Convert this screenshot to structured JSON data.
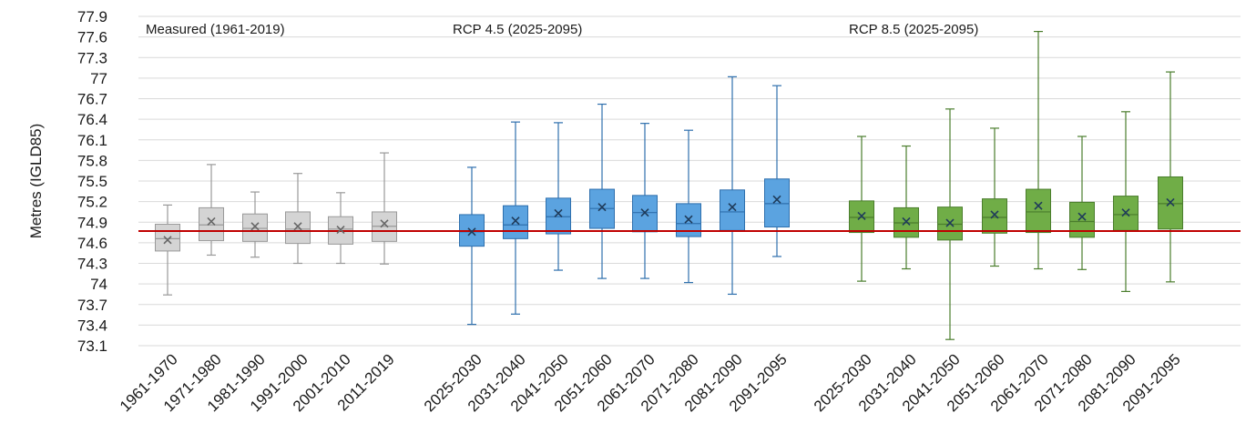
{
  "chart_data": {
    "type": "box",
    "ylabel": "Metres (IGLD85)",
    "ylim": [
      73.1,
      77.9
    ],
    "yticks": [
      73.1,
      73.4,
      73.7,
      74,
      74.3,
      74.6,
      74.9,
      75.2,
      75.5,
      75.8,
      76.1,
      76.4,
      76.7,
      77,
      77.3,
      77.6,
      77.9
    ],
    "ytick_labels": [
      "73.1",
      "73.4",
      "73.7",
      "74",
      "74.3",
      "74.6",
      "74.9",
      "75.2",
      "75.5",
      "75.8",
      "76.1",
      "76.4",
      "76.7",
      "77",
      "77.3",
      "77.6",
      "77.9"
    ],
    "grid": true,
    "reference_line": {
      "value": 74.77,
      "color": "#c00000"
    },
    "groups": [
      {
        "label": "Measured (1961-2019)",
        "fill": "#d4d4d4",
        "stroke": "#999999",
        "boxes": [
          {
            "category": "1961-1970",
            "min": 73.84,
            "q1": 74.48,
            "median": 74.66,
            "mean": 74.64,
            "q3": 74.87,
            "max": 75.15
          },
          {
            "category": "1971-1980",
            "min": 74.42,
            "q1": 74.63,
            "median": 74.86,
            "mean": 74.91,
            "q3": 75.11,
            "max": 75.74
          },
          {
            "category": "1981-1990",
            "min": 74.39,
            "q1": 74.62,
            "median": 74.81,
            "mean": 74.84,
            "q3": 75.02,
            "max": 75.34
          },
          {
            "category": "1991-2000",
            "min": 74.3,
            "q1": 74.59,
            "median": 74.8,
            "mean": 74.84,
            "q3": 75.05,
            "max": 75.61
          },
          {
            "category": "2001-2010",
            "min": 74.3,
            "q1": 74.58,
            "median": 74.8,
            "mean": 74.79,
            "q3": 74.98,
            "max": 75.33
          },
          {
            "category": "2011-2019",
            "min": 74.29,
            "q1": 74.62,
            "median": 74.84,
            "mean": 74.88,
            "q3": 75.05,
            "max": 75.91
          }
        ]
      },
      {
        "label": "RCP 4.5 (2025-2095)",
        "fill": "#5ba3e0",
        "stroke": "#2e6fad",
        "boxes": [
          {
            "category": "2025-2030",
            "min": 73.41,
            "q1": 74.55,
            "median": 74.76,
            "mean": 74.76,
            "q3": 75.01,
            "max": 75.7
          },
          {
            "category": "2031-2040",
            "min": 73.56,
            "q1": 74.66,
            "median": 74.86,
            "mean": 74.92,
            "q3": 75.14,
            "max": 76.36
          },
          {
            "category": "2041-2050",
            "min": 74.2,
            "q1": 74.73,
            "median": 74.98,
            "mean": 75.03,
            "q3": 75.25,
            "max": 76.35
          },
          {
            "category": "2051-2060",
            "min": 74.08,
            "q1": 74.81,
            "median": 75.1,
            "mean": 75.12,
            "q3": 75.38,
            "max": 76.62
          },
          {
            "category": "2061-2070",
            "min": 74.08,
            "q1": 74.76,
            "median": 75.04,
            "mean": 75.04,
            "q3": 75.29,
            "max": 76.34
          },
          {
            "category": "2071-2080",
            "min": 74.02,
            "q1": 74.69,
            "median": 74.88,
            "mean": 74.94,
            "q3": 75.17,
            "max": 76.24
          },
          {
            "category": "2081-2090",
            "min": 73.85,
            "q1": 74.78,
            "median": 75.05,
            "mean": 75.12,
            "q3": 75.37,
            "max": 77.02
          },
          {
            "category": "2091-2095",
            "min": 74.4,
            "q1": 74.83,
            "median": 75.17,
            "mean": 75.23,
            "q3": 75.53,
            "max": 76.89
          }
        ]
      },
      {
        "label": "RCP 8.5 (2025-2095)",
        "fill": "#70ad47",
        "stroke": "#4a7d2c",
        "boxes": [
          {
            "category": "2025-2030",
            "min": 74.04,
            "q1": 74.75,
            "median": 74.97,
            "mean": 74.99,
            "q3": 75.21,
            "max": 76.15
          },
          {
            "category": "2031-2040",
            "min": 74.22,
            "q1": 74.68,
            "median": 74.89,
            "mean": 74.91,
            "q3": 75.11,
            "max": 76.01
          },
          {
            "category": "2041-2050",
            "min": 73.19,
            "q1": 74.64,
            "median": 74.87,
            "mean": 74.89,
            "q3": 75.12,
            "max": 76.55
          },
          {
            "category": "2051-2060",
            "min": 74.26,
            "q1": 74.74,
            "median": 74.97,
            "mean": 75.01,
            "q3": 75.24,
            "max": 76.27
          },
          {
            "category": "2061-2070",
            "min": 74.22,
            "q1": 74.75,
            "median": 75.05,
            "mean": 75.14,
            "q3": 75.38,
            "max": 77.68
          },
          {
            "category": "2071-2080",
            "min": 74.21,
            "q1": 74.68,
            "median": 74.91,
            "mean": 74.98,
            "q3": 75.19,
            "max": 76.15
          },
          {
            "category": "2081-2090",
            "min": 73.89,
            "q1": 74.78,
            "median": 75.01,
            "mean": 75.04,
            "q3": 75.28,
            "max": 76.51
          },
          {
            "category": "2091-2095",
            "min": 74.03,
            "q1": 74.8,
            "median": 75.17,
            "mean": 75.19,
            "q3": 75.56,
            "max": 77.09
          }
        ]
      }
    ]
  }
}
